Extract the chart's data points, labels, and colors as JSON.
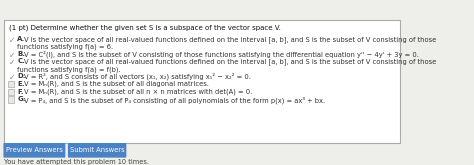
{
  "title": "(1 pt) Determine whether the given set S is a subspace of the vector space V.",
  "options": [
    {
      "label": "A.",
      "text_parts": [
        {
          "t": "V",
          "i": true
        },
        {
          "t": " is the vector space of all real-valued functions defined on the interval [",
          "i": false
        },
        {
          "t": "a",
          "i": true
        },
        {
          "t": ", ",
          "i": false
        },
        {
          "t": "b",
          "i": true
        },
        {
          "t": "], and ",
          "i": false
        },
        {
          "t": "S",
          "i": true
        },
        {
          "t": " is the subset of ",
          "i": false
        },
        {
          "t": "V",
          "i": true
        },
        {
          "t": " consisting of those functions satisfying ",
          "i": false
        },
        {
          "t": "f",
          "i": true
        },
        {
          "t": "(",
          "i": false
        },
        {
          "t": "a",
          "i": true
        },
        {
          "t": ") = 6.",
          "i": false
        }
      ],
      "line2": "functions satisfying f(a) = 6.",
      "text": "V is the vector space of all real-valued functions defined on the interval [a, b], and S is the subset of V consisting of those\nfunctions satisfying f(a) = 6.",
      "checked": true
    },
    {
      "label": "B.",
      "text": "V = C²(I), and S is the subset of V consisting of those functions satisfying the differential equation y'' − 4y' + 3y = 0.",
      "checked": true
    },
    {
      "label": "C.",
      "text": "V is the vector space of all real-valued functions defined on the interval [a, b], and S is the subset of V consisting of those\nfunctions satisfying f(a) = f(b).",
      "checked": true
    },
    {
      "label": "D.",
      "text": "V = R², and S consists of all vectors (x₁, x₂) satisfying x₁² − x₂² = 0.",
      "checked": true
    },
    {
      "label": "E.",
      "text": "V = Mₙ(R), and S is the subset of all diagonal matrices.",
      "checked": false
    },
    {
      "label": "F.",
      "text": "V = Mₙ(R), and S is the subset of all n × n matrices with det(A) = 0.",
      "checked": false
    },
    {
      "label": "G.",
      "text": "V = P₄, and S is the subset of P₄ consisting of all polynomials of the form p(x) = ax³ + bx.",
      "checked": false
    }
  ],
  "button1": "Preview Answers",
  "button2": "Submit Answers",
  "footer": "You have attempted this problem 10 times.",
  "bg_color": "#eeeeea",
  "border_color": "#aaaaaa",
  "button_bg": "#4a82c4",
  "button_text_color": "#ffffff",
  "title_color": "#111111",
  "text_color": "#333333",
  "footer_color": "#444444",
  "check_icon_color": "#888888",
  "checkbox_border": "#aaaaaa",
  "checkbox_bg": "#e8e8e4"
}
